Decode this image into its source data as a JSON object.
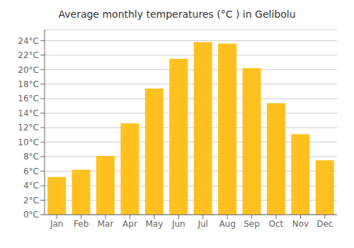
{
  "chart_data": {
    "type": "bar",
    "title": "Average monthly temperatures (°C ) in Gelibolu",
    "categories": [
      "Jan",
      "Feb",
      "Mar",
      "Apr",
      "May",
      "Jun",
      "Jul",
      "Aug",
      "Sep",
      "Oct",
      "Nov",
      "Dec"
    ],
    "values": [
      5.2,
      6.2,
      8.1,
      12.6,
      17.4,
      21.5,
      23.8,
      23.6,
      20.2,
      15.4,
      11.1,
      7.5
    ],
    "color": "#FFC020",
    "ylim": [
      0,
      25.5
    ],
    "yticks": [
      {
        "value": 0,
        "label": "0°C"
      },
      {
        "value": 2,
        "label": "2°C"
      },
      {
        "value": 4,
        "label": "4°C"
      },
      {
        "value": 6,
        "label": "6°C"
      },
      {
        "value": 8,
        "label": "8°C"
      },
      {
        "value": 10,
        "label": "10°C"
      },
      {
        "value": 12,
        "label": "12°C"
      },
      {
        "value": 14,
        "label": "14°C"
      },
      {
        "value": 16,
        "label": "16°C"
      },
      {
        "value": 18,
        "label": "18°C"
      },
      {
        "value": 20,
        "label": "20°C"
      },
      {
        "value": 22,
        "label": "22°C"
      },
      {
        "value": 24,
        "label": "24°C"
      }
    ],
    "grid": true
  }
}
